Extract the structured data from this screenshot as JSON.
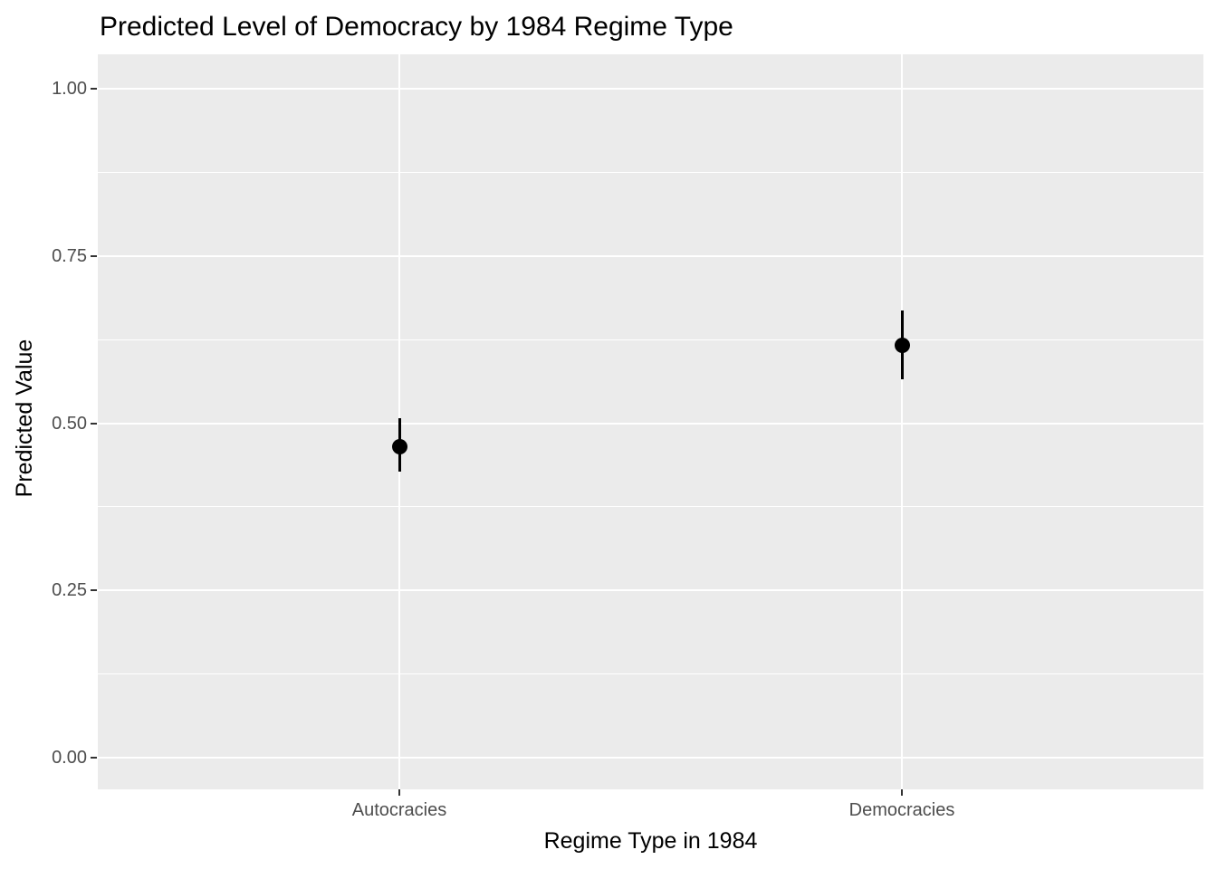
{
  "chart_data": {
    "type": "scatter",
    "subtype": "point-estimate-with-error-bars",
    "title": "Predicted Level of Democracy by 1984 Regime Type",
    "xlabel": "Regime Type in 1984",
    "ylabel": "Predicted Value",
    "categories": [
      "Autocracies",
      "Democracies"
    ],
    "points": [
      {
        "category": "Autocracies",
        "y": 0.465,
        "ymin": 0.428,
        "ymax": 0.507
      },
      {
        "category": "Democracies",
        "y": 0.617,
        "ymin": 0.566,
        "ymax": 0.669
      }
    ],
    "y_ticks": [
      {
        "value": 0.0,
        "label": "0.00"
      },
      {
        "value": 0.25,
        "label": "0.25"
      },
      {
        "value": 0.5,
        "label": "0.50"
      },
      {
        "value": 0.75,
        "label": "0.75"
      },
      {
        "value": 1.0,
        "label": "1.00"
      }
    ],
    "y_minor_values": [
      0.125,
      0.375,
      0.625,
      0.875
    ],
    "ylim": [
      0,
      1
    ],
    "grid": "major-and-minor",
    "legend_position": "none",
    "colors": {
      "panel_background": "#EBEBEB",
      "gridline": "#FFFFFF",
      "point": "#000000",
      "error_bar": "#000000",
      "tick_label": "#4D4D4D",
      "tick_mark": "#333333",
      "title": "#000000",
      "axis_title": "#000000"
    }
  }
}
